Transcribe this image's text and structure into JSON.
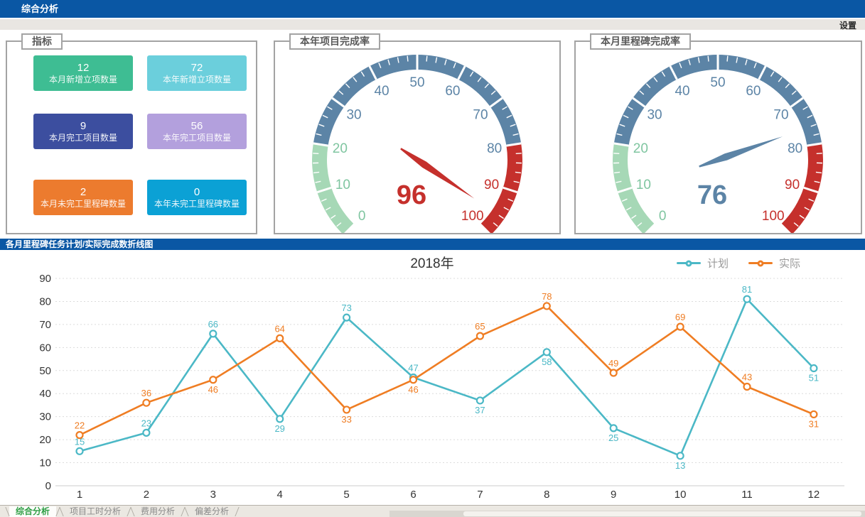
{
  "header": {
    "title": "综合分析",
    "background": "#0a57a4"
  },
  "settings_label": "设置",
  "indicators": {
    "panel_title": "指标",
    "cards": [
      {
        "value": "12",
        "label": "本月新增立项数量",
        "color": "#3ebd93"
      },
      {
        "value": "72",
        "label": "本年新增立项数量",
        "color": "#6bcfdc"
      },
      {
        "value": "9",
        "label": "本月完工项目数量",
        "color": "#3c4e9f"
      },
      {
        "value": "56",
        "label": "本年完工项目数量",
        "color": "#b3a0dd"
      },
      {
        "value": "2",
        "label": "本月未完工里程碑数量",
        "color": "#ec7b2e"
      },
      {
        "value": "0",
        "label": "本年未完工里程碑数量",
        "color": "#0ba1d5"
      }
    ]
  },
  "section_bar": {
    "title": "各月里程碑任务计划/实际完成数折线图"
  },
  "chart_data": [
    {
      "type": "gauge",
      "title": "本年项目完成率",
      "value": 96,
      "min": 0,
      "max": 100,
      "start_angle": 225,
      "end_angle": -45,
      "tick_interval": 10,
      "minor_tick_interval": 2,
      "segments": [
        {
          "from": 0,
          "to": 20,
          "color": "#a6d8b6",
          "label_color": "#7fc5a0"
        },
        {
          "from": 20,
          "to": 80,
          "color": "#5c84a6",
          "label_color": "#5c84a6"
        },
        {
          "from": 80,
          "to": 100,
          "color": "#c5302c",
          "label_color": "#c5302c"
        }
      ],
      "needle_color": "#c5302c",
      "value_color": "#c5302c"
    },
    {
      "type": "gauge",
      "title": "本月里程碑完成率",
      "value": 76,
      "min": 0,
      "max": 100,
      "start_angle": 225,
      "end_angle": -45,
      "tick_interval": 10,
      "minor_tick_interval": 2,
      "segments": [
        {
          "from": 0,
          "to": 20,
          "color": "#a6d8b6",
          "label_color": "#7fc5a0"
        },
        {
          "from": 20,
          "to": 80,
          "color": "#5c84a6",
          "label_color": "#5c84a6"
        },
        {
          "from": 80,
          "to": 100,
          "color": "#c5302c",
          "label_color": "#c5302c"
        }
      ],
      "needle_color": "#5c84a6",
      "value_color": "#5c84a6"
    },
    {
      "type": "line",
      "title": "2018年",
      "categories": [
        "1",
        "2",
        "3",
        "4",
        "5",
        "6",
        "7",
        "8",
        "9",
        "10",
        "11",
        "12"
      ],
      "ylim": [
        0,
        90
      ],
      "y_tick": 10,
      "grid": true,
      "legend_position": "top-right",
      "series": [
        {
          "name": "计划",
          "color": "#4bb8c6",
          "values": [
            15,
            23,
            66,
            29,
            73,
            47,
            37,
            58,
            25,
            13,
            81,
            51
          ],
          "label_pos": [
            "above",
            "above",
            "above",
            "below",
            "above",
            "above",
            "below",
            "below",
            "below",
            "below",
            "above",
            "below"
          ]
        },
        {
          "name": "实际",
          "color": "#ef7d23",
          "values": [
            22,
            36,
            46,
            64,
            33,
            46,
            65,
            78,
            49,
            69,
            43,
            31
          ],
          "label_pos": [
            "above",
            "above",
            "below",
            "above",
            "below",
            "below",
            "above",
            "above",
            "above",
            "above",
            "above",
            "below"
          ]
        }
      ]
    }
  ],
  "tabbar": {
    "tabs": [
      "综合分析",
      "项目工时分析",
      "费用分析",
      "偏差分析"
    ],
    "active": 0
  }
}
